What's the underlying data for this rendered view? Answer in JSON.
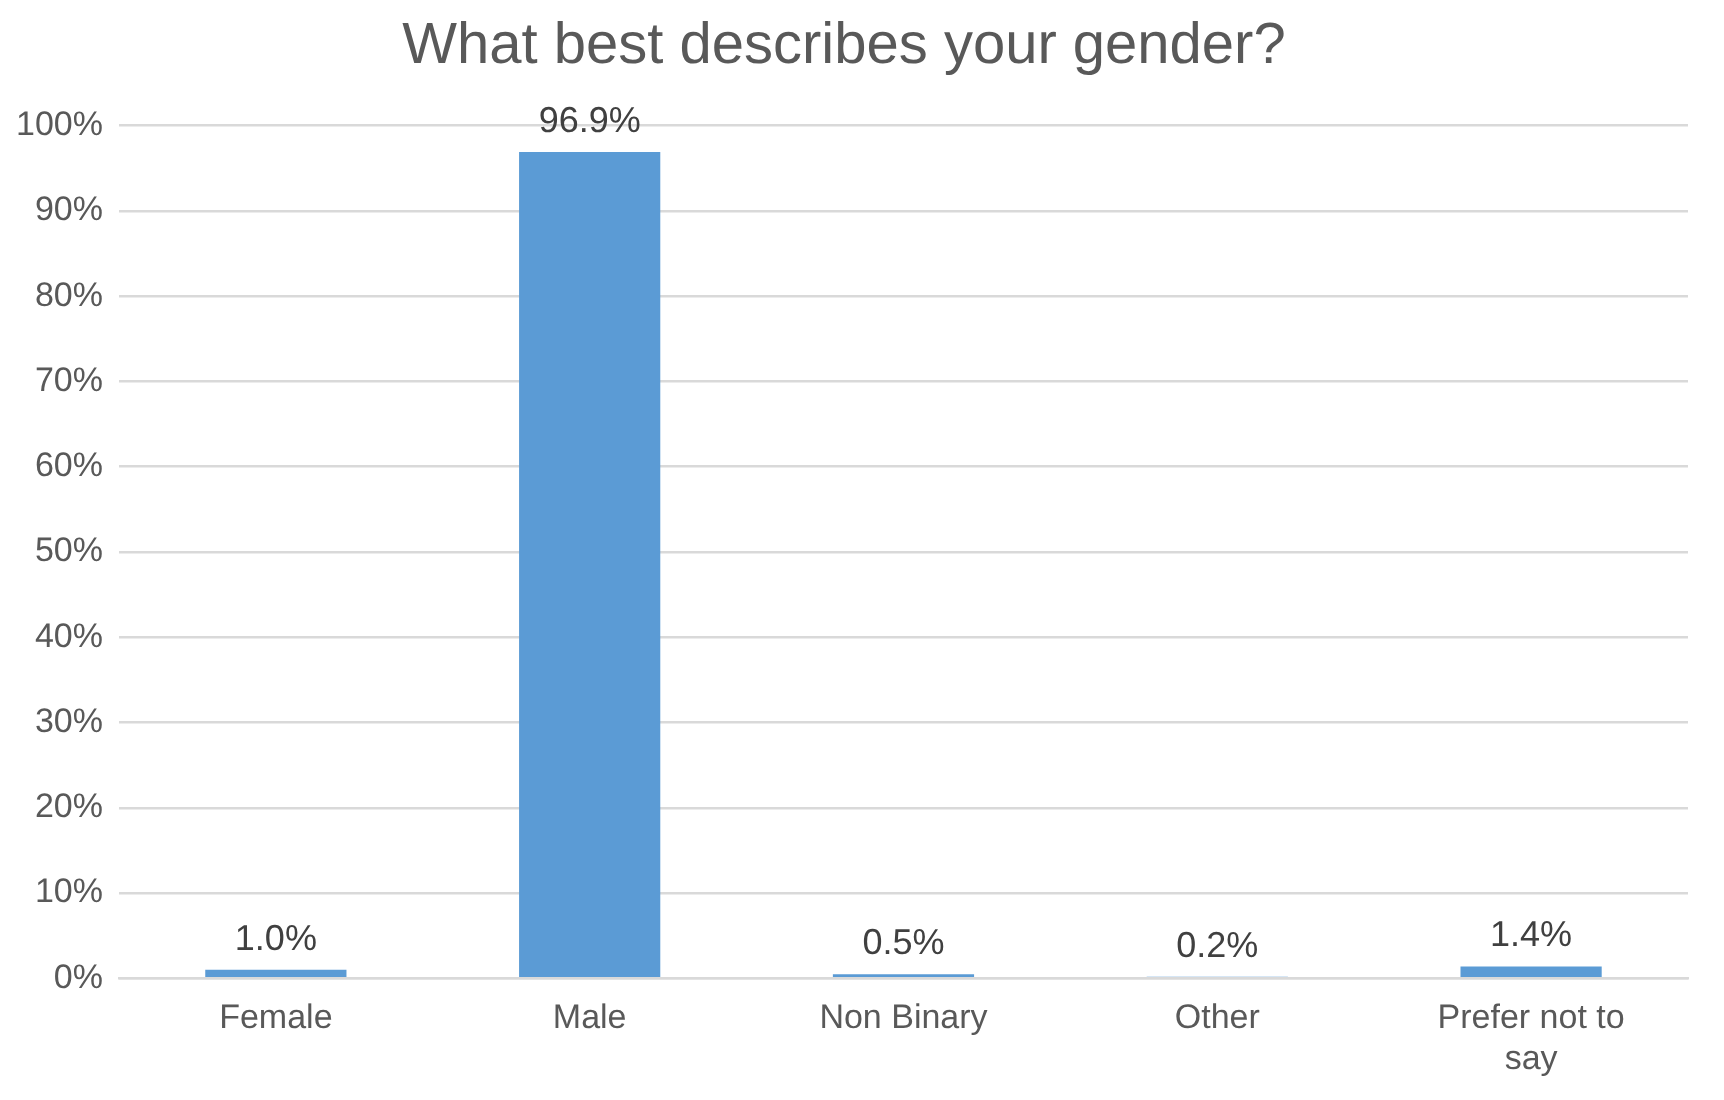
{
  "chart_data": {
    "type": "bar",
    "title": "What best describes your gender?",
    "categories": [
      "Female",
      "Male",
      "Non Binary",
      "Other",
      "Prefer not to say"
    ],
    "values": [
      1.0,
      96.9,
      0.5,
      0.2,
      1.4
    ],
    "value_labels": [
      "1.0%",
      "96.9%",
      "0.5%",
      "0.2%",
      "1.4%"
    ],
    "color": "#5b9bd5",
    "ylim": [
      0,
      100
    ],
    "yticks": [
      {
        "value": 0,
        "label": "0%"
      },
      {
        "value": 10,
        "label": "10%"
      },
      {
        "value": 20,
        "label": "20%"
      },
      {
        "value": 30,
        "label": "30%"
      },
      {
        "value": 40,
        "label": "40%"
      },
      {
        "value": 50,
        "label": "50%"
      },
      {
        "value": 60,
        "label": "60%"
      },
      {
        "value": 70,
        "label": "70%"
      },
      {
        "value": 80,
        "label": "80%"
      },
      {
        "value": 90,
        "label": "90%"
      },
      {
        "value": 100,
        "label": "100%"
      }
    ],
    "grid": "y"
  }
}
